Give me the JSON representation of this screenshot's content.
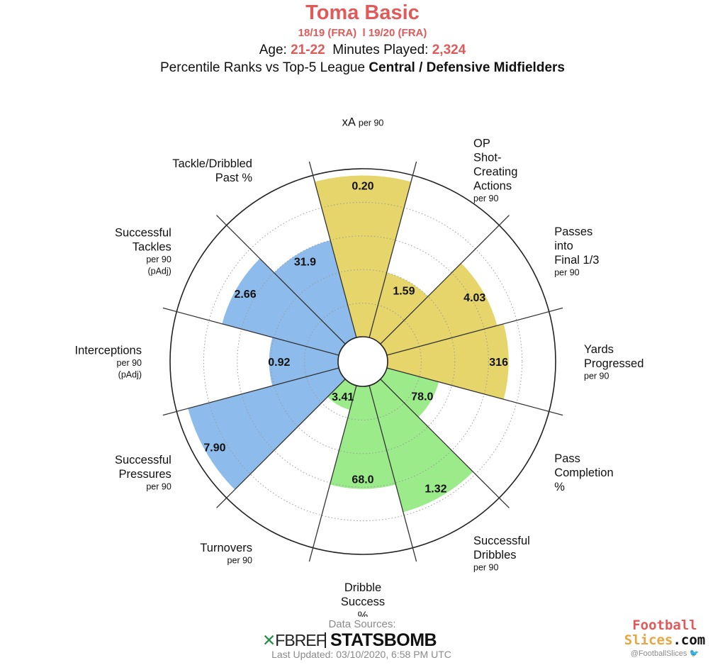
{
  "header": {
    "player": "Toma Basic",
    "seasons": "18/19 (FRA)  l 19/20 (FRA)",
    "age_label": "Age: ",
    "age_value": "21-22",
    "minutes_label": "  Minutes Played: ",
    "minutes_value": "2,324",
    "percentile_prefix": "Percentile Ranks vs Top-5 League ",
    "percentile_group": "Central / Defensive Midfielders"
  },
  "colors": {
    "attacking": "#e6d56b",
    "possession": "#9ceb8a",
    "defending": "#8dbcec",
    "accent": "#e05a5a"
  },
  "chart_data": {
    "type": "polar-bar",
    "radial_range": [
      0,
      100
    ],
    "ring_percentiles": [
      20,
      40,
      60,
      80,
      100
    ],
    "metrics": [
      {
        "label": [
          "xA"
        ],
        "sub": [
          "per 90"
        ],
        "value": "0.20",
        "percentile": 96,
        "group": "attacking"
      },
      {
        "label": [
          "OP",
          "Shot-",
          "Creating",
          "Actions"
        ],
        "sub": [
          "per 90"
        ],
        "value": "1.59",
        "percentile": 40,
        "group": "attacking"
      },
      {
        "label": [
          "Passes",
          "into",
          "Final 1/3"
        ],
        "sub": [
          "per 90"
        ],
        "value": "4.03",
        "percentile": 68,
        "group": "attacking"
      },
      {
        "label": [
          "Yards",
          "Progressed"
        ],
        "sub": [
          "per 90"
        ],
        "value": "316",
        "percentile": 72,
        "group": "attacking"
      },
      {
        "label": [
          "Pass",
          "Completion",
          "%"
        ],
        "sub": [],
        "value": "78.0",
        "percentile": 32,
        "group": "possession"
      },
      {
        "label": [
          "Successful",
          "Dribbles"
        ],
        "sub": [
          "per 90"
        ],
        "value": "1.32",
        "percentile": 78,
        "group": "possession"
      },
      {
        "label": [
          "Dribble",
          "Success",
          "%"
        ],
        "sub": [],
        "value": "68.0",
        "percentile": 61,
        "group": "possession"
      },
      {
        "label": [
          "Turnovers"
        ],
        "sub": [
          "per 90"
        ],
        "value": "3.41",
        "percentile": 15,
        "group": "possession"
      },
      {
        "label": [
          "Successful",
          "Pressures"
        ],
        "sub": [
          "per 90"
        ],
        "value": "7.90",
        "percentile": 93,
        "group": "defending"
      },
      {
        "label": [
          "Interceptions"
        ],
        "sub": [
          "per 90",
          "(pAdj)"
        ],
        "value": "0.92",
        "percentile": 41,
        "group": "defending"
      },
      {
        "label": [
          "Successful",
          "Tackles"
        ],
        "sub": [
          "per 90",
          "(pAdj)"
        ],
        "value": "2.66",
        "percentile": 72,
        "group": "defending"
      },
      {
        "label": [
          "Tackle/Dribbled",
          "Past %"
        ],
        "sub": [],
        "value": "31.9",
        "percentile": 60,
        "group": "defending"
      }
    ]
  },
  "footer": {
    "sources": "Data Sources:",
    "fbref_mark": "✕",
    "fbref": "FBREF",
    "statsbomb": "STATSBOMB",
    "updated": "Last Updated: 03/10/2020, 6:58 PM UTC",
    "brand_line1": "Football",
    "brand_line2a": "Slices",
    "brand_line2b": ".com",
    "handle": "@FootballSlices",
    "twitter_glyph": "🐦"
  }
}
